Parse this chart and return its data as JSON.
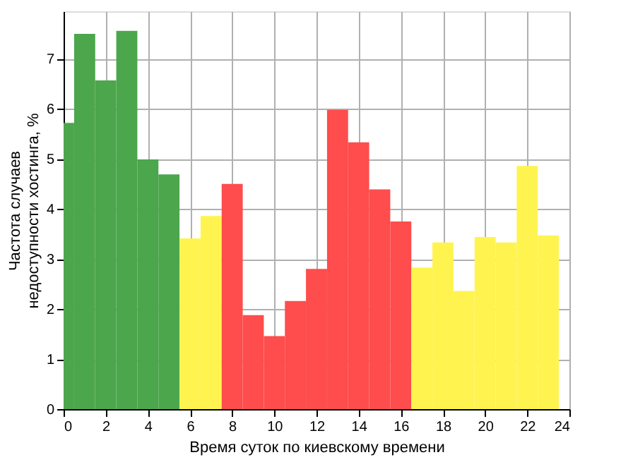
{
  "chart_data": {
    "type": "histogram",
    "xlabel": "Время суток по киевскому времени",
    "ylabel": "Частота случаев\nнедоступности хостинга, %",
    "bins": [
      0,
      0.5,
      1.5,
      2.5,
      3.5,
      4.5,
      5.5,
      6.5,
      7.5,
      8.5,
      9.5,
      10.5,
      11.5,
      12.5,
      13.5,
      14.5,
      15.5,
      16.5,
      17.5,
      18.5,
      19.5,
      20.5,
      21.5,
      22.5,
      23.5
    ],
    "values": [
      5.72,
      7.5,
      6.57,
      7.56,
      4.99,
      4.69,
      3.41,
      3.86,
      4.5,
      1.88,
      1.46,
      2.16,
      2.8,
      5.98,
      5.33,
      4.39,
      3.75,
      2.83,
      3.33,
      2.36,
      3.44,
      3.33,
      4.86,
      3.47
    ],
    "colors": [
      "#4ca64c",
      "#4ca64c",
      "#4ca64c",
      "#4ca64c",
      "#4ca64c",
      "#4ca64c",
      "#fff44f",
      "#fff44f",
      "#ff4c4c",
      "#ff4c4c",
      "#ff4c4c",
      "#ff4c4c",
      "#ff4c4c",
      "#ff4c4c",
      "#ff4c4c",
      "#ff4c4c",
      "#ff4c4c",
      "#fff44f",
      "#fff44f",
      "#fff44f",
      "#fff44f",
      "#fff44f",
      "#fff44f",
      "#fff44f"
    ],
    "xlim": [
      0,
      24
    ],
    "xticks": [
      0,
      2,
      4,
      6,
      8,
      10,
      12,
      14,
      16,
      18,
      20,
      22,
      24
    ],
    "ylim": [
      0,
      7.95
    ],
    "yticks": [
      0,
      1,
      2,
      3,
      4,
      5,
      6,
      7
    ],
    "grid": true
  }
}
